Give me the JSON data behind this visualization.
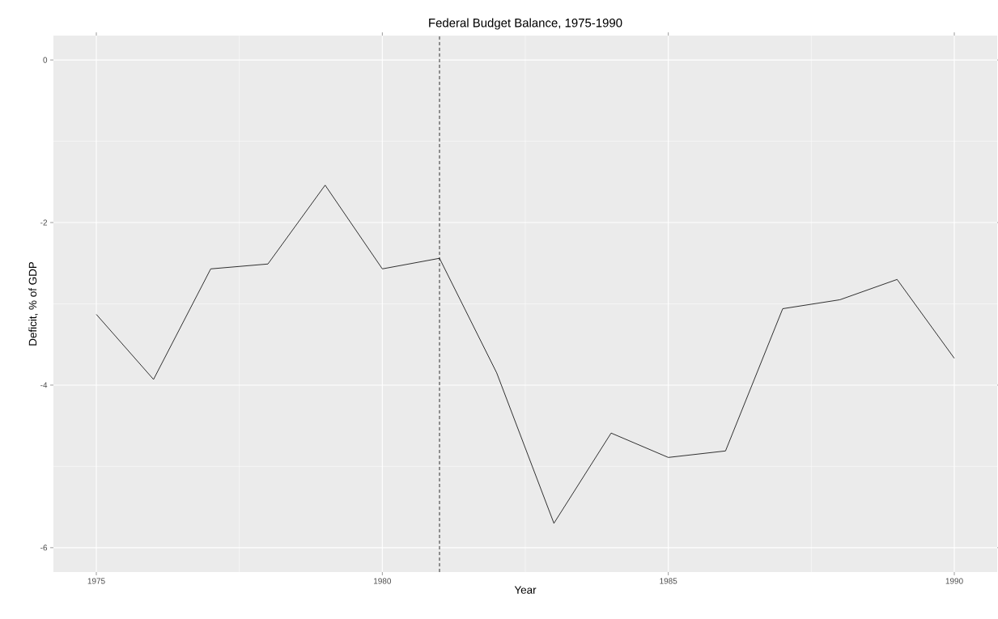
{
  "chart_data": {
    "type": "line",
    "title": "Federal Budget Balance, 1975-1990",
    "xlabel": "Year",
    "ylabel": "Deficit, % of GDP",
    "x": [
      1975,
      1976,
      1977,
      1978,
      1979,
      1980,
      1981,
      1982,
      1983,
      1984,
      1985,
      1986,
      1987,
      1988,
      1989,
      1990
    ],
    "series": [
      {
        "color": "#000000",
        "values": [
          -3.13,
          -3.93,
          -2.57,
          -2.51,
          -1.54,
          -2.57,
          -2.44,
          -3.85,
          -5.7,
          -4.59,
          -4.89,
          -4.81,
          -3.06,
          -2.95,
          -2.7,
          -3.67
        ]
      }
    ],
    "xlim": [
      1974.25,
      1990.75
    ],
    "ylim": [
      -6.3,
      0.3
    ],
    "xticks": [
      1975,
      1980,
      1985,
      1990
    ],
    "yticks": [
      -6,
      -4,
      -2,
      0
    ],
    "ref_lines": [
      {
        "axis": "x",
        "value": 1981,
        "color": "#000000",
        "line_style": "dashed"
      }
    ],
    "grid": true,
    "line_style": "solid",
    "marker": "none"
  }
}
